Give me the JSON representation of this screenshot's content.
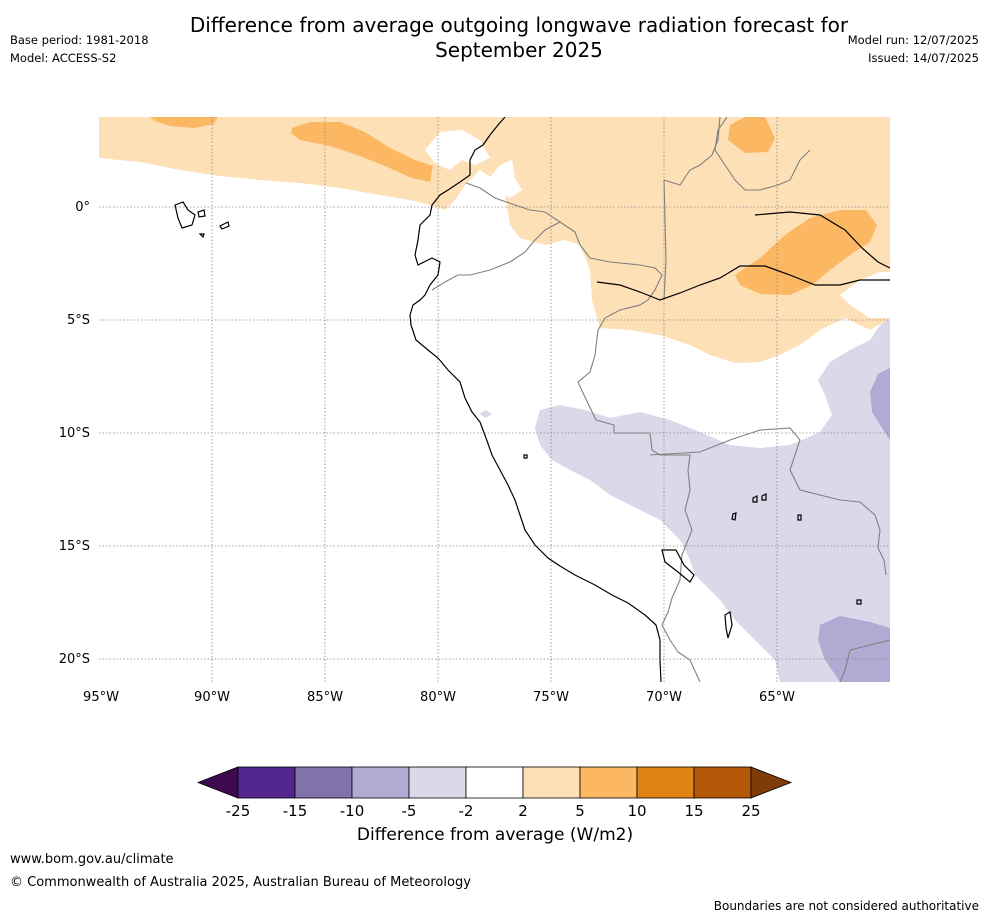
{
  "title": {
    "line1": "Difference from average outgoing longwave radiation forecast for",
    "line2": "September 2025"
  },
  "meta": {
    "base_period": "Base period: 1981-2018",
    "model": "Model: ACCESS-S2",
    "model_run": "Model run: 12/07/2025",
    "issued": "Issued: 14/07/2025"
  },
  "map": {
    "lat_labels": [
      "0°",
      "5°S",
      "10°S",
      "15°S",
      "20°S"
    ],
    "lon_labels": [
      "95°W",
      "90°W",
      "85°W",
      "80°W",
      "75°W",
      "70°W",
      "65°W"
    ],
    "colors": {
      "ocean_bg": "#ffffff",
      "positive_weak": "#fde0b6",
      "positive_mid": "#fbb761",
      "negative_weak": "#d9d9ea",
      "negative_mid": "#b1aad2",
      "coast": "#000000",
      "border": "#808080"
    }
  },
  "colorbar": {
    "ticks": [
      "-25",
      "-15",
      "-10",
      "-5",
      "-2",
      "2",
      "5",
      "10",
      "15",
      "25"
    ],
    "colors": [
      "#3f0a4d",
      "#54278f",
      "#8073ac",
      "#b1aad2",
      "#d9d9ea",
      "#ffffff",
      "#fde0b6",
      "#fbb761",
      "#e08214",
      "#b35806",
      "#7f3b08"
    ],
    "label": "Difference from average (W/m2)"
  },
  "footer": {
    "url": "www.bom.gov.au/climate",
    "copyright": "© Commonwealth of Australia 2025, Australian Bureau of Meteorology",
    "note": "Boundaries are not considered authoritative"
  }
}
